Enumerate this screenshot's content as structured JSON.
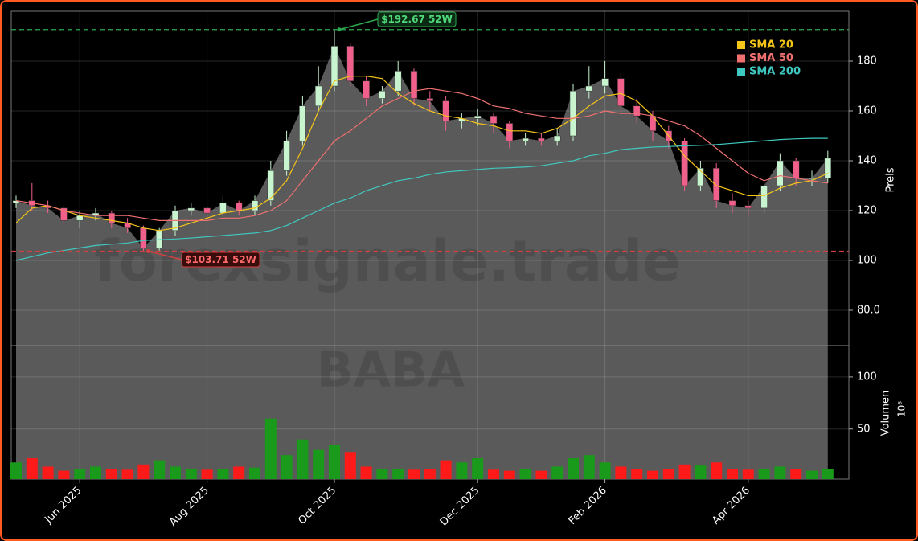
{
  "chart_data": {
    "type": "candlestick",
    "categories": [
      null,
      null,
      null,
      null,
      "Jun 2025",
      null,
      null,
      null,
      null,
      null,
      null,
      null,
      "Aug 2025",
      null,
      null,
      null,
      null,
      null,
      null,
      null,
      "Oct 2025",
      null,
      null,
      null,
      null,
      null,
      null,
      null,
      null,
      "Dec 2025",
      null,
      null,
      null,
      null,
      null,
      null,
      null,
      "Feb 2026",
      null,
      null,
      null,
      null,
      null,
      null,
      null,
      null,
      "Apr 2026",
      null,
      null,
      null,
      null,
      null
    ],
    "open": [
      123,
      124,
      122,
      121,
      116,
      118,
      119,
      115,
      113,
      105,
      112,
      120,
      121,
      119,
      123,
      120,
      124,
      136,
      148,
      162,
      170,
      186,
      172,
      165,
      168,
      176,
      165,
      164,
      156,
      157,
      158,
      155,
      148,
      149,
      148,
      150,
      168,
      170,
      173,
      162,
      158,
      152,
      148,
      130,
      137,
      124,
      122,
      121,
      130,
      140,
      133,
      133
    ],
    "high": [
      126,
      131,
      124,
      122,
      120,
      121,
      120,
      117,
      114,
      113,
      122,
      123,
      122,
      126,
      124,
      126,
      140,
      152,
      166,
      178,
      192.67,
      187,
      174,
      170,
      180,
      177,
      168,
      166,
      159,
      161,
      159,
      156,
      151,
      151,
      153,
      171,
      178,
      180,
      175,
      165,
      160,
      154,
      149,
      140,
      139,
      127,
      124,
      132,
      143,
      141,
      136,
      144
    ],
    "low": [
      121,
      120,
      119,
      114,
      113,
      116,
      113,
      111,
      103.71,
      104,
      110,
      118,
      117,
      118,
      118,
      118,
      122,
      134,
      146,
      160,
      168,
      170,
      162,
      163,
      166,
      162,
      160,
      152,
      153,
      154,
      151,
      145,
      146,
      146,
      146,
      148,
      165,
      167,
      159,
      155,
      148,
      145,
      128,
      128,
      121,
      119,
      118,
      119,
      128,
      130,
      130,
      131
    ],
    "close": [
      124,
      122,
      121,
      116,
      118,
      119,
      115,
      113,
      105,
      112,
      120,
      121,
      119,
      123,
      120,
      124,
      136,
      148,
      162,
      170,
      186,
      172,
      165,
      168,
      176,
      165,
      164,
      156,
      157,
      158,
      155,
      148,
      149,
      148,
      150,
      168,
      170,
      173,
      162,
      158,
      152,
      148,
      130,
      137,
      124,
      122,
      121,
      130,
      140,
      133,
      133,
      141
    ],
    "up_color": "#c8f5d0",
    "down_color": "#f0608a",
    "area_color": "#5a5a5a",
    "series": [
      {
        "name": "SMA 20",
        "color": "#f5c518",
        "values": [
          115,
          121,
          122,
          120,
          118,
          117,
          116,
          115,
          113,
          112,
          113,
          115,
          117,
          119,
          120,
          121,
          125,
          132,
          145,
          160,
          172,
          174,
          174,
          173,
          167,
          163,
          160,
          158,
          157,
          155,
          154,
          152,
          152,
          151,
          153,
          157,
          162,
          166,
          167,
          164,
          158,
          150,
          142,
          136,
          130,
          128,
          126,
          126,
          129,
          131,
          132,
          135
        ]
      },
      {
        "name": "SMA 50",
        "color": "#f07070",
        "values": [
          124,
          123,
          122,
          120,
          119,
          118,
          118,
          118,
          117,
          116,
          116,
          116,
          116,
          117,
          117,
          118,
          120,
          124,
          132,
          140,
          148,
          152,
          157,
          162,
          165,
          168,
          169,
          168,
          167,
          165,
          162,
          161,
          159,
          158,
          157,
          157,
          158,
          160,
          159,
          159,
          158,
          156,
          154,
          150,
          145,
          140,
          135,
          132,
          134,
          133,
          132,
          131
        ]
      },
      {
        "name": "SMA 200",
        "color": "#40c8c0",
        "values": [
          100,
          101.5,
          103,
          104,
          105,
          106,
          106.5,
          107,
          108,
          108.3,
          108.6,
          109,
          109.5,
          110,
          110.5,
          111,
          112,
          114,
          117,
          120,
          123,
          125,
          128,
          130,
          132,
          133,
          134.5,
          135.5,
          136,
          136.5,
          137,
          137.2,
          137.5,
          138,
          139,
          140,
          142,
          143,
          144.5,
          145,
          145.5,
          145.7,
          146,
          146.2,
          146.5,
          147,
          147.5,
          148,
          148.5,
          148.8,
          149,
          149
        ]
      }
    ],
    "annotations": [
      {
        "value": 192.67,
        "label": "$192.67 52W",
        "color": "#2ea84f"
      },
      {
        "value": 103.71,
        "label": "$103.71 52W",
        "color": "#d04040"
      }
    ],
    "ylim": [
      65.8,
      200
    ],
    "yticks": [
      {
        "value": 80,
        "label": "80.0"
      },
      100,
      120,
      140,
      160,
      180
    ],
    "ylabel": "Preis",
    "grid": true,
    "legend": "top-right",
    "watermark": "forexsignale.trade",
    "symbol": "BABA",
    "volume": {
      "values": [
        18,
        22,
        14,
        10,
        12,
        14,
        12,
        11,
        16,
        20,
        14,
        12,
        11,
        12,
        14,
        13,
        60,
        25,
        40,
        30,
        35,
        28,
        14,
        12,
        12,
        11,
        12,
        20,
        18,
        22,
        11,
        10,
        12,
        10,
        14,
        22,
        25,
        18,
        14,
        12,
        10,
        12,
        16,
        15,
        18,
        12,
        11,
        12,
        14,
        12,
        10,
        12
      ],
      "up_color": "#1a9a1a",
      "down_color": "#ff1a1a",
      "ylim": [
        2,
        130
      ],
      "yticks": [
        50,
        100
      ],
      "ylabel": "Volumen",
      "unit": "10⁶"
    }
  }
}
